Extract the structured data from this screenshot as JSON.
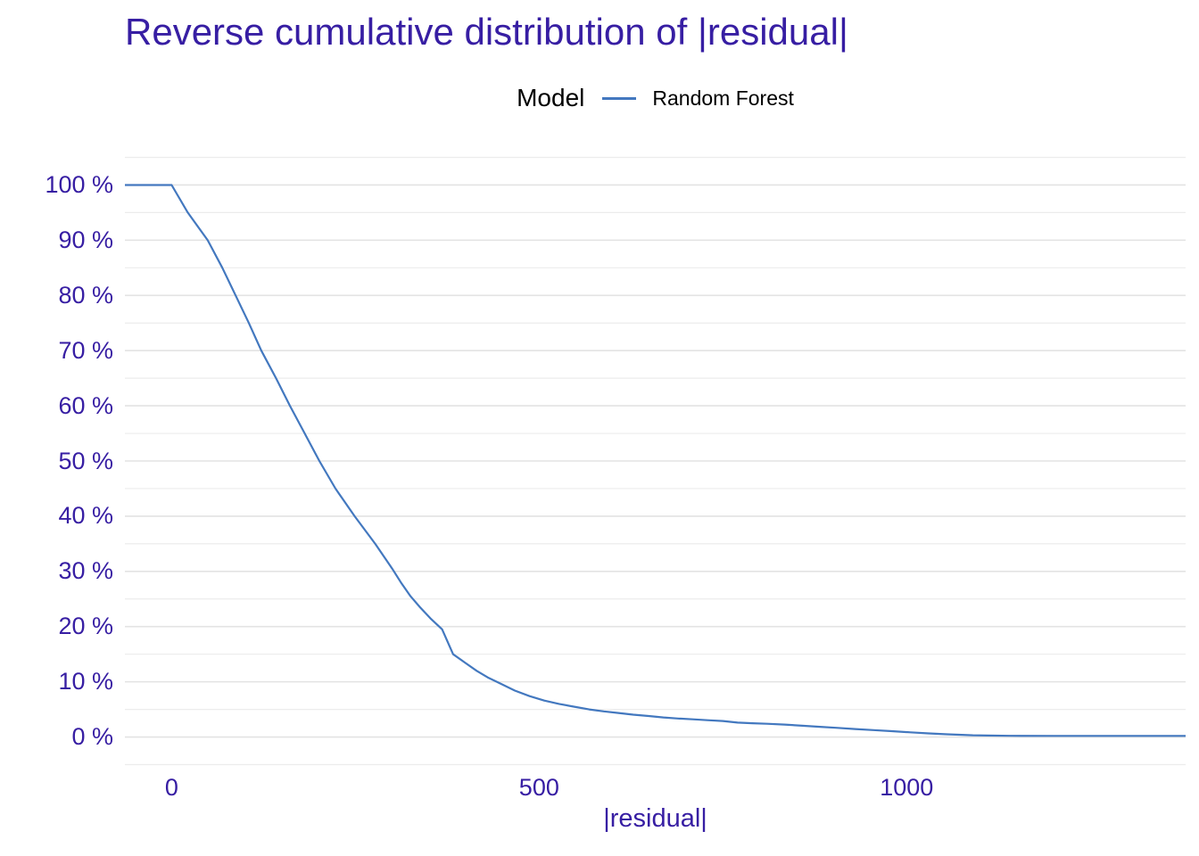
{
  "title": "Reverse cumulative distribution of |residual|",
  "legend": {
    "title": "Model",
    "items": [
      {
        "label": "Random Forest",
        "color": "#4378bf"
      }
    ]
  },
  "colors": {
    "text": "#371ea3",
    "legend_text": "#000000",
    "line": "#4378bf",
    "grid_major": "#e3e3e3",
    "grid_minor": "#ececec",
    "background": "#ffffff"
  },
  "chart_data": {
    "type": "line",
    "title": "Reverse cumulative distribution of |residual|",
    "xlabel": "|residual|",
    "ylabel": "",
    "xlim": [
      -63.6,
      1379.6
    ],
    "ylim": [
      -5,
      105
    ],
    "grid": "horizontal-only",
    "legend_position": "top-center",
    "x_ticks": [
      0,
      500,
      1000
    ],
    "x_tick_labels": [
      "0",
      "500",
      "1000"
    ],
    "y_ticks": [
      0,
      10,
      20,
      30,
      40,
      50,
      60,
      70,
      80,
      90,
      100
    ],
    "y_tick_labels": [
      "0 %",
      "10 %",
      "20 %",
      "30 %",
      "40 %",
      "50 %",
      "60 %",
      "70 %",
      "80 %",
      "90 %",
      "100 %"
    ],
    "y_minor_step": 5,
    "series": [
      {
        "name": "Random Forest",
        "color": "#4378bf",
        "pad_to_panel_edges": true,
        "points": [
          [
            0,
            100
          ],
          [
            22,
            95
          ],
          [
            49,
            90
          ],
          [
            69,
            85
          ],
          [
            87,
            80
          ],
          [
            105,
            75
          ],
          [
            122,
            70
          ],
          [
            142,
            65
          ],
          [
            161,
            60
          ],
          [
            181,
            55
          ],
          [
            201,
            50
          ],
          [
            223,
            45
          ],
          [
            249,
            40
          ],
          [
            277,
            35
          ],
          [
            300,
            30.5
          ],
          [
            312,
            28
          ],
          [
            325,
            25.5
          ],
          [
            338,
            23.5
          ],
          [
            352,
            21.5
          ],
          [
            368,
            19.5
          ],
          [
            383,
            15
          ],
          [
            400,
            13.4
          ],
          [
            415,
            12
          ],
          [
            430,
            10.8
          ],
          [
            447,
            9.7
          ],
          [
            467,
            8.4
          ],
          [
            487,
            7.4
          ],
          [
            507,
            6.6
          ],
          [
            527,
            6.0
          ],
          [
            547,
            5.5
          ],
          [
            568,
            5.0
          ],
          [
            588,
            4.65
          ],
          [
            608,
            4.35
          ],
          [
            628,
            4.05
          ],
          [
            649,
            3.8
          ],
          [
            669,
            3.55
          ],
          [
            689,
            3.35
          ],
          [
            709,
            3.2
          ],
          [
            729,
            3.05
          ],
          [
            750,
            2.9
          ],
          [
            770,
            2.6
          ],
          [
            790,
            2.5
          ],
          [
            810,
            2.4
          ],
          [
            834,
            2.25
          ],
          [
            858,
            2.05
          ],
          [
            882,
            1.85
          ],
          [
            906,
            1.65
          ],
          [
            930,
            1.45
          ],
          [
            955,
            1.25
          ],
          [
            980,
            1.05
          ],
          [
            1005,
            0.85
          ],
          [
            1030,
            0.65
          ],
          [
            1055,
            0.5
          ],
          [
            1075,
            0.4
          ],
          [
            1090,
            0.32
          ],
          [
            1110,
            0.27
          ],
          [
            1140,
            0.22
          ],
          [
            1200,
            0.2
          ],
          [
            1300,
            0.2
          ],
          [
            1379.6,
            0.2
          ]
        ]
      }
    ]
  }
}
